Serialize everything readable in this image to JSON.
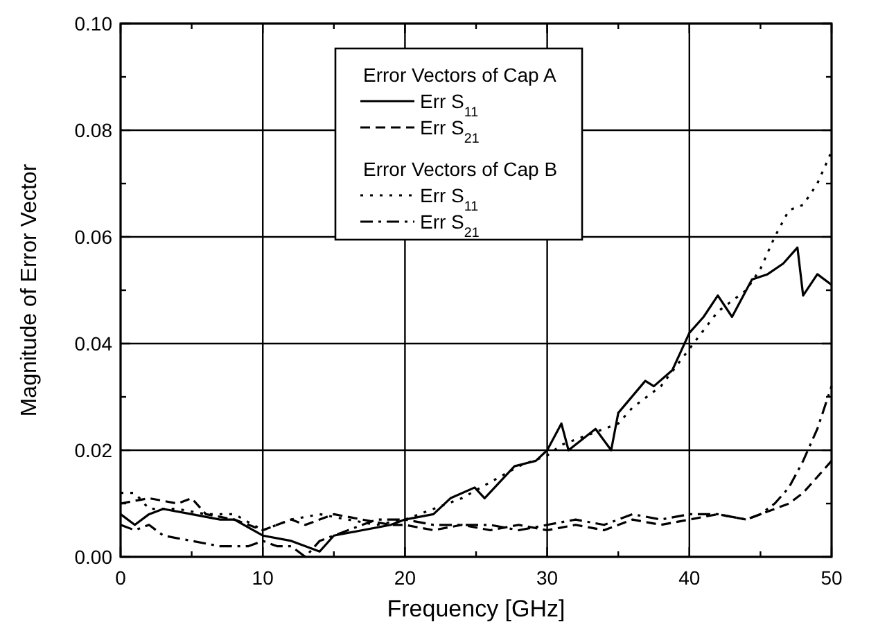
{
  "chart_data": {
    "type": "line",
    "xlabel": "Frequency [GHz]",
    "ylabel": "Magnitude of Error Vector",
    "xlim": [
      0,
      50
    ],
    "ylim": [
      0,
      0.1
    ],
    "xticks": [
      0,
      {
        "value": 5,
        "label": null
      },
      10,
      {
        "value": 15,
        "label": null
      },
      20,
      {
        "value": 25,
        "label": null
      },
      30,
      {
        "value": 35,
        "label": null
      },
      40,
      {
        "value": 45,
        "label": null
      },
      50
    ],
    "yticks": [
      {
        "value": 0,
        "label": "0.00"
      },
      {
        "value": 0.01,
        "label": null
      },
      {
        "value": 0.02,
        "label": "0.02"
      },
      {
        "value": 0.03,
        "label": null
      },
      {
        "value": 0.04,
        "label": "0.04"
      },
      {
        "value": 0.05,
        "label": null
      },
      {
        "value": 0.06,
        "label": "0.06"
      },
      {
        "value": 0.07,
        "label": null
      },
      {
        "value": 0.08,
        "label": "0.08"
      },
      {
        "value": 0.09,
        "label": null
      },
      {
        "value": 0.1,
        "label": "0.10"
      }
    ],
    "grid": true,
    "legend": "top",
    "annotations": [
      "Error Vectors of Cap A",
      "Error Vectors of Cap B"
    ],
    "series": [
      {
        "name": "Err S$_{11}$",
        "color": "#000000",
        "line_style": "solid",
        "x": [
          0,
          1,
          2,
          3,
          5,
          7,
          8,
          10,
          12,
          14,
          15,
          17,
          19,
          20,
          22,
          23.2,
          24.9,
          25.6,
          27.7,
          29.2,
          30,
          31,
          31.5,
          33.4,
          34.5,
          35,
          36.9,
          37.5,
          38.8,
          40,
          41,
          42,
          43,
          44.4,
          45.5,
          46.6,
          47.6,
          48,
          49,
          50
        ],
        "values": [
          0.008,
          0.006,
          0.008,
          0.009,
          0.008,
          0.007,
          0.007,
          0.004,
          0.003,
          0.001,
          0.004,
          0.005,
          0.006,
          0.007,
          0.008,
          0.011,
          0.013,
          0.011,
          0.017,
          0.018,
          0.02,
          0.025,
          0.02,
          0.024,
          0.02,
          0.027,
          0.033,
          0.032,
          0.035,
          0.042,
          0.045,
          0.049,
          0.045,
          0.052,
          0.053,
          0.055,
          0.058,
          0.049,
          0.053,
          0.051
        ]
      },
      {
        "name": "Err S$_{21}$",
        "color": "#000000",
        "line_style": "dashed",
        "x": [
          0,
          2,
          4,
          5,
          6,
          8,
          10,
          11,
          12,
          13,
          14,
          15,
          17,
          19,
          20,
          22,
          24,
          26,
          28,
          30,
          32,
          34,
          36,
          38,
          40,
          42,
          44,
          46,
          47,
          48,
          49,
          50
        ],
        "values": [
          0.01,
          0.011,
          0.01,
          0.011,
          0.008,
          0.007,
          0.005,
          0.006,
          0.007,
          0.006,
          0.007,
          0.008,
          0.007,
          0.006,
          0.006,
          0.005,
          0.006,
          0.005,
          0.006,
          0.005,
          0.006,
          0.005,
          0.007,
          0.006,
          0.007,
          0.008,
          0.007,
          0.009,
          0.01,
          0.012,
          0.015,
          0.018
        ]
      },
      {
        "name": "Err S$_{11}$",
        "color": "#000000",
        "line_style": "dotted",
        "x": [
          0,
          1,
          2,
          4,
          6,
          8,
          10,
          12,
          14,
          16,
          18,
          20,
          22,
          24,
          26,
          28,
          30,
          31,
          33,
          35,
          36,
          38,
          40,
          42,
          44,
          45,
          46,
          47,
          48,
          49,
          50
        ],
        "values": [
          0.012,
          0.012,
          0.009,
          0.009,
          0.008,
          0.008,
          0.005,
          0.007,
          0.008,
          0.007,
          0.006,
          0.007,
          0.009,
          0.011,
          0.014,
          0.017,
          0.019,
          0.021,
          0.023,
          0.025,
          0.028,
          0.032,
          0.039,
          0.046,
          0.05,
          0.054,
          0.06,
          0.065,
          0.066,
          0.07,
          0.076
        ]
      },
      {
        "name": "Err S$_{21}$",
        "color": "#000000",
        "line_style": "dashdot",
        "x": [
          0,
          1,
          2,
          3,
          5,
          7,
          9,
          10,
          11,
          12,
          13,
          14,
          16,
          18,
          20,
          22,
          24,
          26,
          28,
          30,
          32,
          34,
          36,
          38,
          40,
          42,
          44,
          45,
          46,
          47,
          48,
          49,
          50
        ],
        "values": [
          0.006,
          0.005,
          0.006,
          0.004,
          0.003,
          0.002,
          0.002,
          0.003,
          0.002,
          0.002,
          0.0,
          0.003,
          0.005,
          0.007,
          0.007,
          0.006,
          0.006,
          0.006,
          0.005,
          0.006,
          0.007,
          0.006,
          0.008,
          0.007,
          0.008,
          0.008,
          0.007,
          0.008,
          0.01,
          0.013,
          0.018,
          0.024,
          0.032
        ]
      }
    ]
  }
}
